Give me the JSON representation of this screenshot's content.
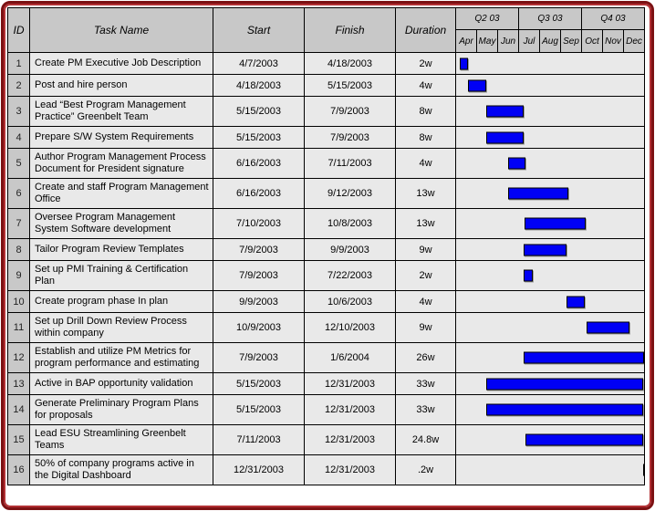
{
  "colors": {
    "frame_outer": "#7c1113",
    "frame_inner": "#b23034",
    "header_bg": "#c8c8c8",
    "row_bg": "#e9e9e9",
    "bar": "#0000f5"
  },
  "header": {
    "columns": [
      "ID",
      "Task Name",
      "Start",
      "Finish",
      "Duration"
    ]
  },
  "chart_data": {
    "type": "gantt",
    "legend": "none",
    "grid": "black 1px table grid, no vertical month lines in plot body",
    "timeline": {
      "axis_start": "4/1/2003",
      "axis_end": "1/1/2004",
      "quarters": [
        "Q2 03",
        "Q3 03",
        "Q4 03"
      ],
      "months": [
        "Apr",
        "May",
        "Jun",
        "Jul",
        "Aug",
        "Sep",
        "Oct",
        "Nov",
        "Dec"
      ]
    },
    "tasks": [
      {
        "id": "1",
        "name": "Create PM Executive Job Description",
        "start": "4/7/2003",
        "finish": "4/18/2003",
        "duration": "2w"
      },
      {
        "id": "2",
        "name": "Post and hire person",
        "start": "4/18/2003",
        "finish": "5/15/2003",
        "duration": "4w"
      },
      {
        "id": "3",
        "name": "Lead “Best Program Management Practice” Greenbelt Team",
        "start": "5/15/2003",
        "finish": "7/9/2003",
        "duration": "8w"
      },
      {
        "id": "4",
        "name": "Prepare S/W System Requirements",
        "start": "5/15/2003",
        "finish": "7/9/2003",
        "duration": "8w"
      },
      {
        "id": "5",
        "name": "Author Program Management Process Document for President signature",
        "start": "6/16/2003",
        "finish": "7/11/2003",
        "duration": "4w"
      },
      {
        "id": "6",
        "name": "Create and staff Program Management Office",
        "start": "6/16/2003",
        "finish": "9/12/2003",
        "duration": "13w"
      },
      {
        "id": "7",
        "name": "Oversee Program Management System Software development",
        "start": "7/10/2003",
        "finish": "10/8/2003",
        "duration": "13w"
      },
      {
        "id": "8",
        "name": "Tailor Program Review Templates",
        "start": "7/9/2003",
        "finish": "9/9/2003",
        "duration": "9w"
      },
      {
        "id": "9",
        "name": "Set up PMI Training & Certification Plan",
        "start": "7/9/2003",
        "finish": "7/22/2003",
        "duration": "2w"
      },
      {
        "id": "10",
        "name": "Create program phase In plan",
        "start": "9/9/2003",
        "finish": "10/6/2003",
        "duration": "4w"
      },
      {
        "id": "11",
        "name": "Set up Drill Down Review Process within company",
        "start": "10/9/2003",
        "finish": "12/10/2003",
        "duration": "9w"
      },
      {
        "id": "12",
        "name": "Establish and utilize PM Metrics for program performance and estimating",
        "start": "7/9/2003",
        "finish": "1/6/2004",
        "duration": "26w"
      },
      {
        "id": "13",
        "name": "Active in BAP opportunity validation",
        "start": "5/15/2003",
        "finish": "12/31/2003",
        "duration": "33w"
      },
      {
        "id": "14",
        "name": "Generate Preliminary Program Plans for proposals",
        "start": "5/15/2003",
        "finish": "12/31/2003",
        "duration": "33w"
      },
      {
        "id": "15",
        "name": "Lead ESU Streamlining Greenbelt Teams",
        "start": "7/11/2003",
        "finish": "12/31/2003",
        "duration": "24.8w"
      },
      {
        "id": "16",
        "name": "50% of company programs active in the Digital Dashboard",
        "start": "12/31/2003",
        "finish": "12/31/2003",
        "duration": ".2w"
      }
    ]
  }
}
